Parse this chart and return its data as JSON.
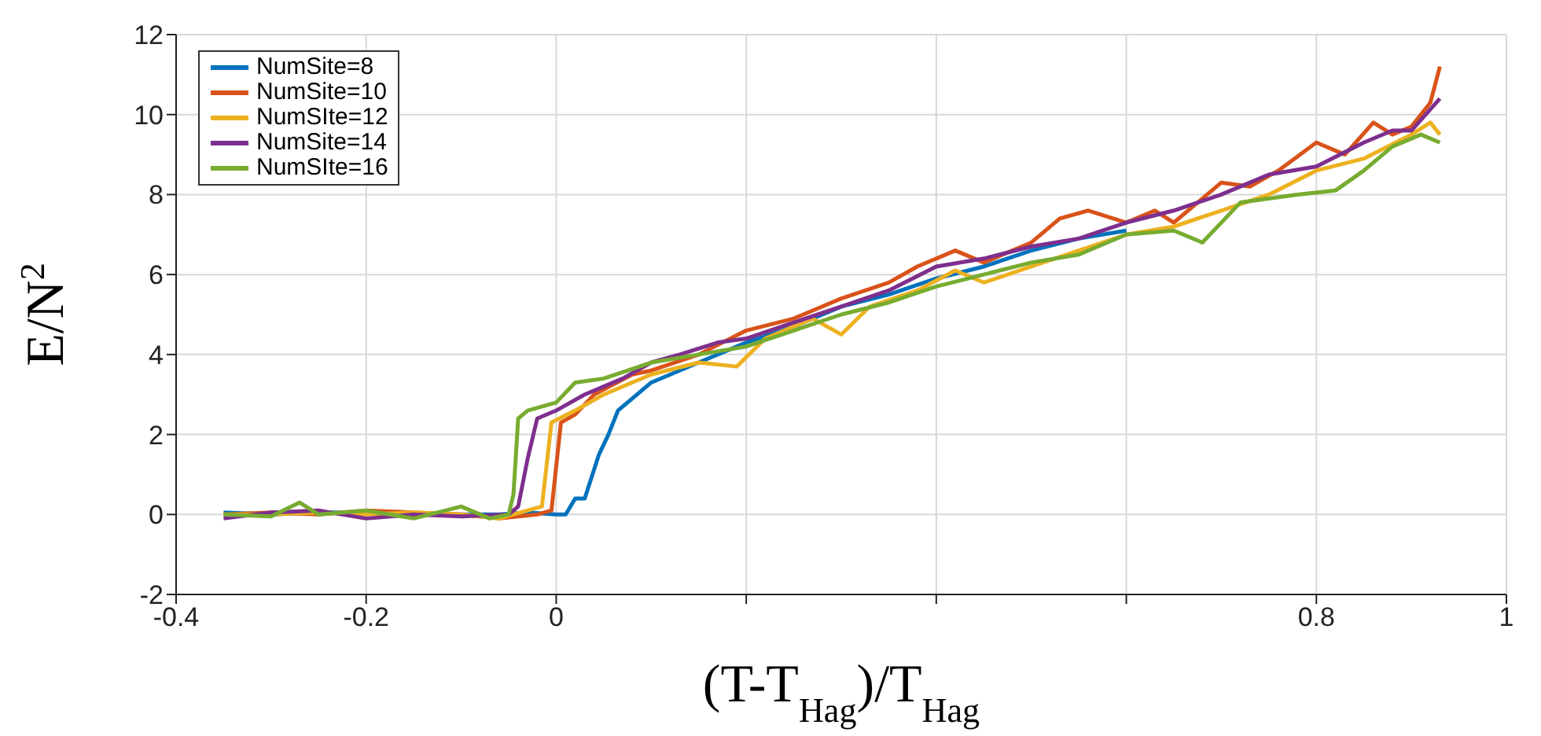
{
  "chart_data": {
    "type": "line",
    "xlabel": "(T-T$_{Hag}$)/T$_{Hag}$",
    "ylabel": "E/N$^{2}$",
    "xlim": [
      -0.4,
      1
    ],
    "xticks": [
      -0.4,
      -0.2,
      0,
      {
        "value": 0.2,
        "label": null
      },
      {
        "value": 0.4,
        "label": null
      },
      {
        "value": 0.6,
        "label": null
      },
      0.8,
      1
    ],
    "ylim": [
      -2,
      12
    ],
    "yticks": [
      -2,
      0,
      2,
      4,
      6,
      8,
      10,
      12
    ],
    "grid": true,
    "legend": "top left",
    "series": [
      {
        "name": "NumSite=8",
        "color": "#0072bd",
        "x": [
          -0.35,
          -0.3,
          -0.25,
          -0.2,
          -0.15,
          -0.1,
          -0.06,
          -0.03,
          0,
          0.01,
          0.02,
          0.03,
          0.045,
          0.055,
          0.065,
          0.08,
          0.1,
          0.15,
          0.2,
          0.25,
          0.3,
          0.35,
          0.4,
          0.45,
          0.5,
          0.55,
          0.6
        ],
        "values": [
          0.05,
          0,
          0.05,
          0.05,
          0,
          0,
          0,
          0.05,
          0,
          0,
          0.4,
          0.4,
          1.5,
          2.0,
          2.6,
          2.9,
          3.3,
          3.8,
          4.3,
          4.7,
          5.2,
          5.5,
          5.9,
          6.2,
          6.6,
          6.9,
          7.1
        ]
      },
      {
        "name": "NumSite=10",
        "color": "#d95319",
        "x": [
          -0.35,
          -0.3,
          -0.25,
          -0.2,
          -0.15,
          -0.1,
          -0.06,
          -0.02,
          -0.005,
          0.005,
          0.02,
          0.04,
          0.08,
          0.1,
          0.15,
          0.2,
          0.25,
          0.3,
          0.35,
          0.38,
          0.42,
          0.45,
          0.5,
          0.53,
          0.56,
          0.6,
          0.63,
          0.65,
          0.7,
          0.73,
          0.76,
          0.8,
          0.83,
          0.86,
          0.88,
          0.9,
          0.92,
          0.93
        ],
        "values": [
          0,
          0.05,
          0,
          0.1,
          0.05,
          0,
          -0.1,
          0,
          0.1,
          2.3,
          2.5,
          3.0,
          3.5,
          3.6,
          4.0,
          4.6,
          4.9,
          5.4,
          5.8,
          6.2,
          6.6,
          6.3,
          6.8,
          7.4,
          7.6,
          7.3,
          7.6,
          7.3,
          8.3,
          8.2,
          8.6,
          9.3,
          9.0,
          9.8,
          9.5,
          9.7,
          10.3,
          11.2
        ]
      },
      {
        "name": "NumSIte=12",
        "color": "#edb120",
        "x": [
          -0.35,
          -0.3,
          -0.25,
          -0.2,
          -0.15,
          -0.1,
          -0.06,
          -0.03,
          -0.015,
          -0.005,
          0.02,
          0.05,
          0.1,
          0.15,
          0.19,
          0.22,
          0.27,
          0.3,
          0.33,
          0.38,
          0.42,
          0.45,
          0.5,
          0.55,
          0.6,
          0.65,
          0.7,
          0.75,
          0.8,
          0.85,
          0.9,
          0.92,
          0.93
        ],
        "values": [
          0,
          0,
          0.05,
          0,
          0.05,
          0,
          -0.1,
          0.1,
          0.2,
          2.3,
          2.6,
          3.0,
          3.5,
          3.8,
          3.7,
          4.4,
          4.9,
          4.5,
          5.2,
          5.6,
          6.1,
          5.8,
          6.2,
          6.6,
          7.0,
          7.2,
          7.6,
          8.0,
          8.6,
          8.9,
          9.5,
          9.8,
          9.5
        ]
      },
      {
        "name": "NumSite=14",
        "color": "#7e2f8e",
        "x": [
          -0.35,
          -0.3,
          -0.25,
          -0.2,
          -0.15,
          -0.1,
          -0.05,
          -0.04,
          -0.03,
          -0.02,
          0,
          0.03,
          0.07,
          0.1,
          0.13,
          0.17,
          0.2,
          0.25,
          0.3,
          0.35,
          0.4,
          0.45,
          0.5,
          0.55,
          0.6,
          0.65,
          0.7,
          0.75,
          0.8,
          0.85,
          0.88,
          0.9,
          0.93
        ],
        "values": [
          -0.1,
          0.05,
          0.1,
          -0.1,
          0,
          -0.05,
          0,
          0.2,
          1.4,
          2.4,
          2.6,
          3.0,
          3.4,
          3.8,
          4.0,
          4.3,
          4.4,
          4.8,
          5.2,
          5.6,
          6.2,
          6.4,
          6.7,
          6.9,
          7.3,
          7.6,
          8.0,
          8.5,
          8.7,
          9.3,
          9.6,
          9.6,
          10.4
        ]
      },
      {
        "name": "NumSIte=16",
        "color": "#77ac30",
        "x": [
          -0.35,
          -0.3,
          -0.27,
          -0.25,
          -0.2,
          -0.15,
          -0.1,
          -0.07,
          -0.05,
          -0.045,
          -0.04,
          -0.03,
          0,
          0.02,
          0.05,
          0.1,
          0.15,
          0.2,
          0.25,
          0.3,
          0.35,
          0.4,
          0.45,
          0.5,
          0.55,
          0.6,
          0.65,
          0.68,
          0.72,
          0.78,
          0.82,
          0.85,
          0.88,
          0.91,
          0.93
        ],
        "values": [
          0,
          -0.05,
          0.3,
          0,
          0.1,
          -0.1,
          0.2,
          -0.1,
          0,
          0.5,
          2.4,
          2.6,
          2.8,
          3.3,
          3.4,
          3.8,
          4.0,
          4.2,
          4.6,
          5.0,
          5.3,
          5.7,
          6.0,
          6.3,
          6.5,
          7.0,
          7.1,
          6.8,
          7.8,
          8.0,
          8.1,
          8.6,
          9.2,
          9.5,
          9.3
        ]
      }
    ]
  }
}
